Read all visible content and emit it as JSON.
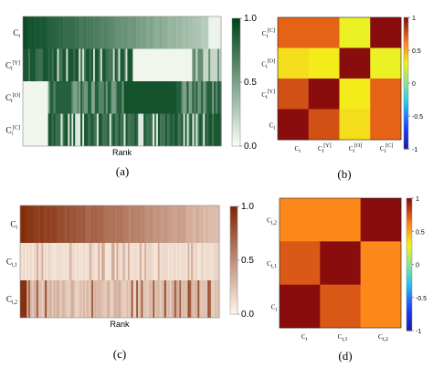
{
  "chart_data": [
    {
      "panel": "(a)",
      "type": "heatmap",
      "xlabel": "Rank",
      "rows": [
        "C_i",
        "C_i^[Y]",
        "C_i^[O]",
        "C_i^[C]"
      ],
      "colorbar_ticks": [
        "1.0",
        "0.5",
        "0.0"
      ],
      "colorbar_range": [
        0,
        1
      ],
      "colormap": [
        "#f7fcf5",
        "#00441b"
      ]
    },
    {
      "panel": "(b)",
      "type": "heatmap",
      "rows": [
        "C_i^[C]",
        "C_i^[O]",
        "C_i^[Y]",
        "C_i"
      ],
      "cols": [
        "C_i",
        "C_i^[Y]",
        "C_i^[O]",
        "C_i^[C]"
      ],
      "values": [
        [
          0.72,
          0.72,
          0.28,
          1.0
        ],
        [
          0.36,
          0.32,
          1.0,
          0.28
        ],
        [
          0.78,
          1.0,
          0.32,
          0.72
        ],
        [
          1.0,
          0.78,
          0.36,
          0.72
        ]
      ],
      "colorbar_ticks": [
        "1",
        "0.5",
        "0",
        "-0.5",
        "-1"
      ],
      "colorbar_range": [
        -1,
        1
      ]
    },
    {
      "panel": "(c)",
      "type": "heatmap",
      "xlabel": "Rank",
      "rows": [
        "C_i",
        "C_i,1",
        "C_i,2"
      ],
      "colorbar_ticks": [
        "1.0",
        "0.5",
        "0.0"
      ],
      "colorbar_range": [
        0,
        1
      ],
      "colormap": [
        "#fff5eb",
        "#7f2704"
      ]
    },
    {
      "panel": "(d)",
      "type": "heatmap",
      "rows": [
        "C_i,2",
        "C_i,1",
        "C_i"
      ],
      "cols": [
        "C_i",
        "C_i,1",
        "C_i,2"
      ],
      "values": [
        [
          0.6,
          0.6,
          1.0
        ],
        [
          0.75,
          1.0,
          0.6
        ],
        [
          1.0,
          0.75,
          0.6
        ]
      ],
      "colorbar_ticks": [
        "1",
        "0.5",
        "0",
        "-0.5",
        "-1"
      ],
      "colorbar_range": [
        -1,
        1
      ]
    }
  ]
}
